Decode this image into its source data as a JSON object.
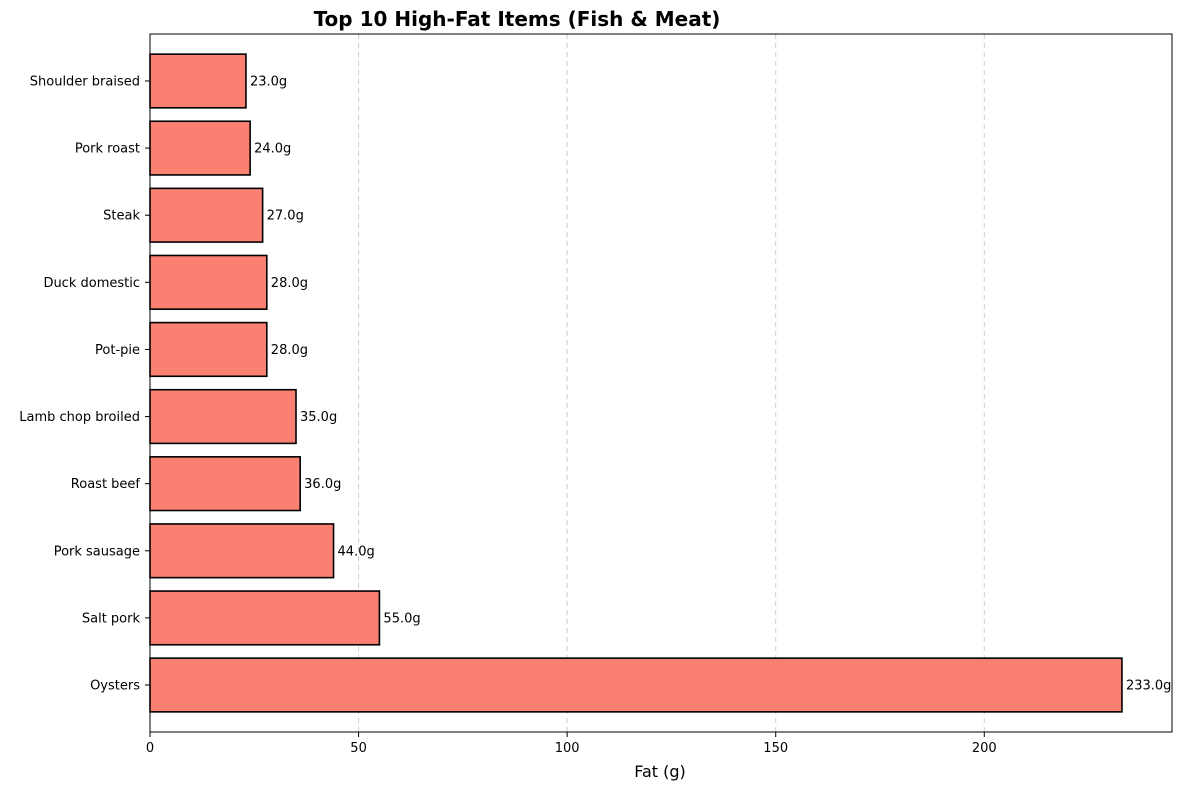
{
  "chart_data": {
    "type": "bar",
    "orientation": "horizontal",
    "title": "Top 10 High-Fat Items (Fish & Meat)",
    "xlabel": "Fat (g)",
    "ylabel": "",
    "categories": [
      "Oysters",
      "Salt pork",
      "Pork sausage",
      "Roast beef",
      "Lamb chop broiled",
      "Pot-pie",
      "Duck domestic",
      "Steak",
      "Pork roast",
      "Shoulder braised"
    ],
    "values": [
      233,
      55,
      44,
      36,
      35,
      28,
      28,
      27,
      24,
      23
    ],
    "data_labels": [
      "233.0g",
      "55.0g",
      "44.0g",
      "36.0g",
      "35.0g",
      "28.0g",
      "28.0g",
      "27.0g",
      "24.0g",
      "23.0g"
    ],
    "xlim": [
      0,
      245
    ],
    "xticks": [
      0,
      50,
      100,
      150,
      200
    ],
    "xtick_labels": [
      "0",
      "50",
      "100",
      "150",
      "200"
    ],
    "grid": "x-axis dashed",
    "bar_color": "#fa8072",
    "bar_edge_color": "#000000",
    "grid_color": "#cccccc"
  }
}
